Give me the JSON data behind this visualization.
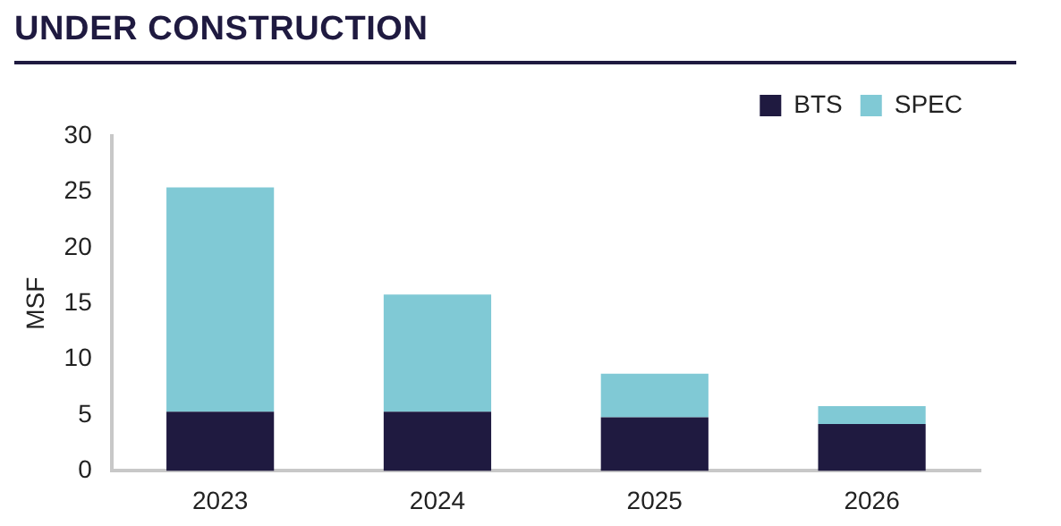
{
  "chart_data": {
    "type": "bar",
    "title": "UNDER CONSTRUCTION",
    "ylabel": "MSF",
    "categories": [
      "2023",
      "2024",
      "2025",
      "2026"
    ],
    "stacked": true,
    "series": [
      {
        "name": "BTS",
        "color": "#1f1a40",
        "values": [
          5.3,
          5.3,
          4.8,
          4.2
        ]
      },
      {
        "name": "SPEC",
        "color": "#80c9d5",
        "values": [
          20.1,
          10.5,
          3.9,
          1.6
        ]
      }
    ],
    "ylim": [
      0,
      30
    ],
    "yticks": [
      0,
      5,
      10,
      15,
      20,
      25,
      30
    ],
    "grid": false,
    "legend": "top right"
  }
}
